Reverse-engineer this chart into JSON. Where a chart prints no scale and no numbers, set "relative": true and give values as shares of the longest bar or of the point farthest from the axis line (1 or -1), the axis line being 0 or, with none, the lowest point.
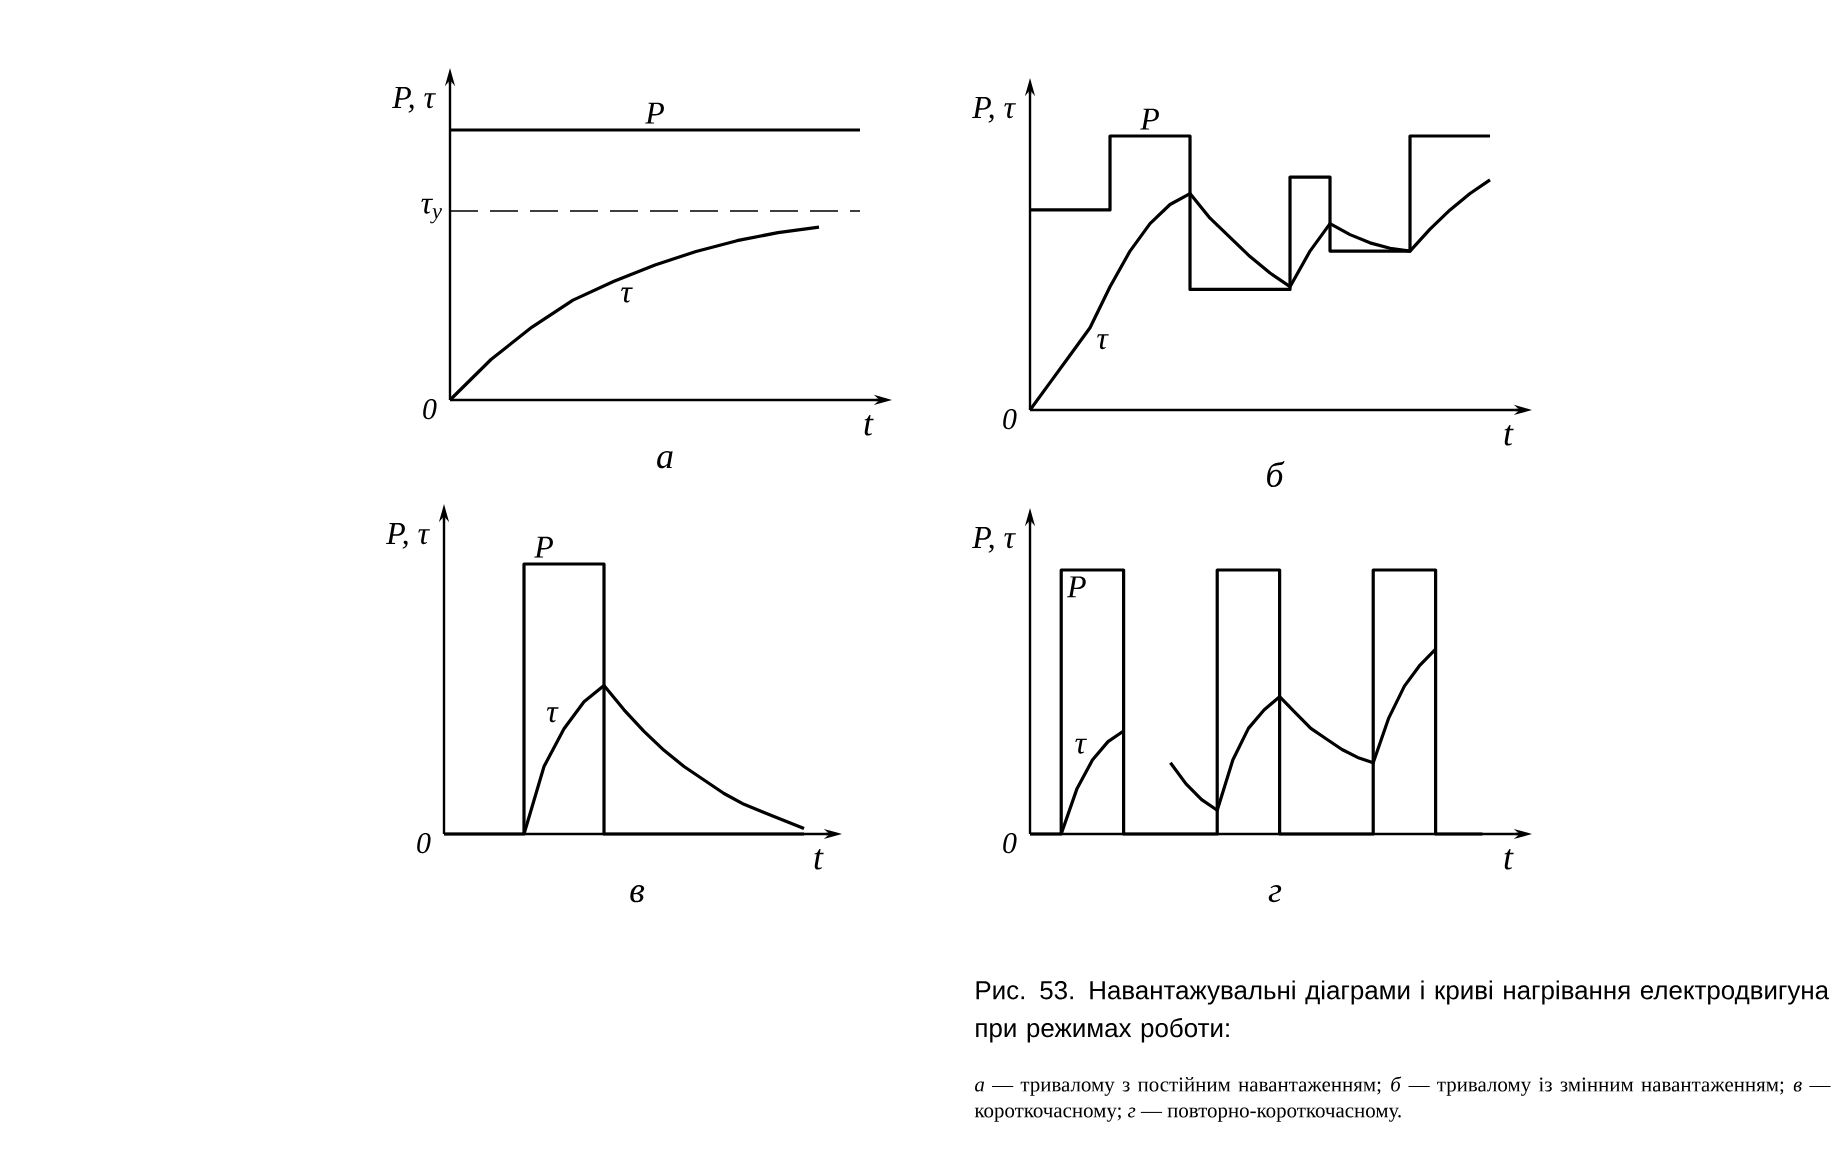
{
  "chart_data": [
    {
      "type": "line",
      "relative": true,
      "title": "*а*",
      "xlabel": "t",
      "ylabel": "P, τ",
      "categories": [
        null,
        null,
        null,
        null,
        null,
        null,
        null,
        null,
        null,
        null,
        null
      ],
      "series": [
        {
          "name": "P",
          "type": "step",
          "color": "#000000",
          "values": [
            1,
            1,
            1,
            1,
            1,
            1,
            1,
            1,
            1,
            1,
            1
          ]
        },
        {
          "name": "τ",
          "color": "#000000",
          "values": [
            0,
            0.15,
            0.27,
            0.37,
            0.44,
            0.5,
            0.55,
            0.59,
            0.62,
            0.64,
            null
          ]
        }
      ],
      "ref_lines": [
        {
          "axis": "y",
          "value": 0.7,
          "label": "τ$_{y}$",
          "line_style": "dashed"
        }
      ],
      "annotations": [
        "0"
      ]
    },
    {
      "type": "line",
      "relative": true,
      "title": "*б*",
      "xlabel": "t",
      "ylabel": "P, τ",
      "categories": [
        null,
        null,
        null,
        null,
        null,
        null,
        null,
        null,
        null,
        null,
        null,
        null,
        null,
        null,
        null,
        null,
        null,
        null,
        null,
        null,
        null,
        null,
        null,
        null
      ],
      "series": [
        {
          "name": "P",
          "type": "step",
          "color": "#000000",
          "values": [
            0.73,
            0.73,
            0.73,
            0.73,
            1,
            1,
            1,
            1,
            0.44,
            0.44,
            0.44,
            0.44,
            0.44,
            0.85,
            0.85,
            0.58,
            0.58,
            0.58,
            0.58,
            1,
            1,
            1,
            1,
            1
          ]
        },
        {
          "name": "τ",
          "color": "#000000",
          "values": [
            0,
            0.1,
            0.2,
            0.3,
            0.45,
            0.58,
            0.68,
            0.75,
            0.79,
            0.7,
            0.63,
            0.56,
            0.5,
            0.45,
            0.58,
            0.68,
            0.64,
            0.61,
            0.59,
            0.58,
            0.66,
            0.73,
            0.79,
            0.84
          ]
        }
      ],
      "annotations": [
        "0"
      ]
    },
    {
      "type": "line",
      "relative": true,
      "title": "*в*",
      "xlabel": "t",
      "ylabel": "P, τ",
      "categories": [
        null,
        null,
        null,
        null,
        null,
        null,
        null,
        null,
        null,
        null,
        null,
        null,
        null,
        null,
        null,
        null,
        null,
        null,
        null
      ],
      "series": [
        {
          "name": "P",
          "type": "step",
          "color": "#000000",
          "values": [
            0,
            0,
            0,
            0,
            1,
            1,
            1,
            1,
            0,
            0,
            0,
            0,
            0,
            0,
            0,
            0,
            0,
            0,
            0
          ]
        },
        {
          "name": "τ",
          "color": "#000000",
          "values": [
            null,
            null,
            null,
            null,
            0,
            0.25,
            0.39,
            0.49,
            0.55,
            0.46,
            0.38,
            0.31,
            0.25,
            0.2,
            0.15,
            0.11,
            0.08,
            0.05,
            0.02
          ]
        }
      ],
      "annotations": [
        "0"
      ]
    },
    {
      "type": "line",
      "relative": true,
      "title": "*г*",
      "xlabel": "t",
      "ylabel": "P, τ",
      "categories": [
        null,
        null,
        null,
        null,
        null,
        null,
        null,
        null,
        null,
        null,
        null,
        null,
        null,
        null,
        null,
        null,
        null,
        null,
        null,
        null,
        null,
        null,
        null,
        null,
        null,
        null,
        null,
        null,
        null,
        null
      ],
      "series": [
        {
          "name": "P",
          "type": "step",
          "color": "#000000",
          "values": [
            0,
            0,
            1,
            1,
            1,
            1,
            0,
            0,
            0,
            0,
            0,
            0,
            1,
            1,
            1,
            1,
            0,
            0,
            0,
            0,
            0,
            0,
            1,
            1,
            1,
            1,
            0,
            0,
            0,
            0
          ]
        },
        {
          "name": "τ",
          "color": "#000000",
          "values": [
            null,
            null,
            0,
            0.17,
            0.28,
            0.35,
            0.39,
            null,
            null,
            0.27,
            0.19,
            0.13,
            0.09,
            0.28,
            0.4,
            0.47,
            0.52,
            0.46,
            0.4,
            0.36,
            0.32,
            0.29,
            0.27,
            0.44,
            0.56,
            0.64,
            0.7,
            null,
            null,
            null
          ]
        }
      ],
      "annotations": [
        "0",
        "Рис. 53. Навантажувальні діаграми і криві нагрівання електродвигуна при режимах роботи:",
        "*а* — тривалому з постійним навантаженням; *б* — тривалому із змінним навантаженням; *в* — короткочасному; *г* — повторно-короткочасному."
      ]
    }
  ]
}
